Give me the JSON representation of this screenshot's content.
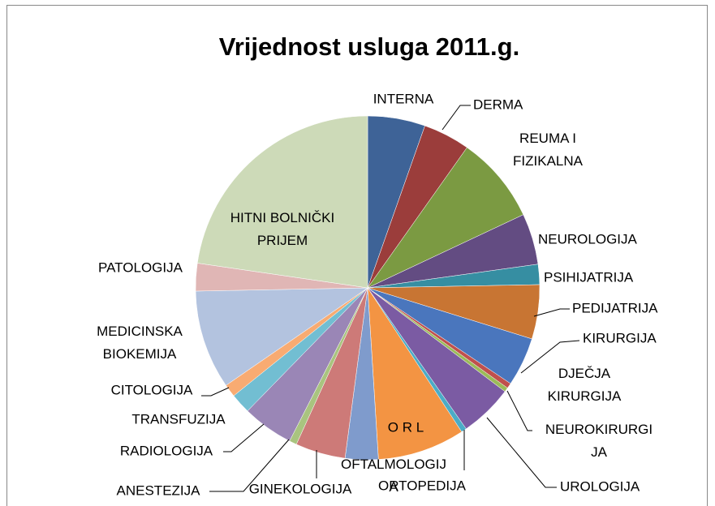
{
  "chart_data": {
    "type": "pie",
    "title": "Vrijednost usluga 2011.g.",
    "categories": [
      "INTERNA",
      "DERMA",
      "REUMA I FIZIKALNA",
      "NEUROLOGIJA",
      "PSIHIJATRIJA",
      "PEDIJATRIJA",
      "KIRURGIJA",
      "DJEČJA KIRURGIJA",
      "NEUROKIRURGIJA",
      "UROLOGIJA",
      "ORTOPEDIJA",
      "O R L",
      "OFTALMOLOGIJA",
      "GINEKOLOGIJA",
      "ANESTEZIJA",
      "RADIOLOGIJA",
      "TRANSFUZIJA",
      "CITOLOGIJA",
      "MEDICINSKA BIOKEMIJA",
      "PATOLOGIJA",
      "HITNI BOLNIČKI PRIJEM"
    ],
    "values": [
      5.4,
      4.4,
      8.2,
      4.8,
      1.9,
      5.1,
      4.6,
      0.5,
      0.4,
      5.0,
      0.5,
      8.2,
      3.1,
      4.7,
      0.7,
      4.8,
      1.9,
      1.2,
      9.3,
      2.6,
      22.7
    ],
    "colors": [
      "#3e6397",
      "#9b3d3b",
      "#7b9a42",
      "#634c82",
      "#368ea2",
      "#c87533",
      "#4a76bd",
      "#c0504d",
      "#9bbb59",
      "#7b5ba3",
      "#4bacc6",
      "#f39443",
      "#7f9bcc",
      "#cd7a78",
      "#a9c47f",
      "#9a86b6",
      "#72bed2",
      "#f8ab72",
      "#b3c3df",
      "#e0b6b5",
      "#cddab8"
    ]
  }
}
